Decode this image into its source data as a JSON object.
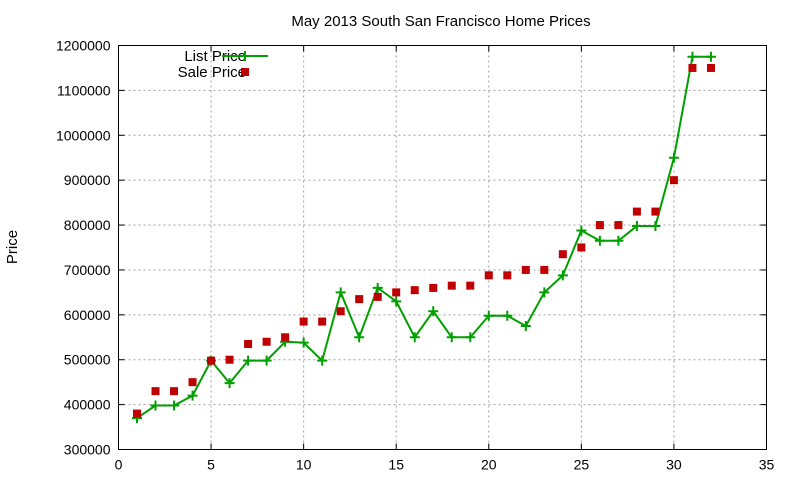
{
  "chart_data": {
    "type": "line",
    "title": "May 2013 South San Francisco Home Prices",
    "xlabel": "",
    "ylabel": "Price",
    "xlim": [
      0,
      35
    ],
    "ylim": [
      300000,
      1200000
    ],
    "xticks": [
      0,
      5,
      10,
      15,
      20,
      25,
      30,
      35
    ],
    "yticks": [
      300000,
      400000,
      500000,
      600000,
      700000,
      800000,
      900000,
      1000000,
      1100000,
      1200000
    ],
    "grid": true,
    "legend_position": "top-left",
    "x": [
      1,
      2,
      3,
      4,
      5,
      6,
      7,
      8,
      9,
      10,
      11,
      12,
      13,
      14,
      15,
      16,
      17,
      18,
      19,
      20,
      21,
      22,
      23,
      24,
      25,
      26,
      27,
      28,
      29,
      30,
      31,
      32
    ],
    "series": [
      {
        "name": "List Price",
        "style": "line-points",
        "marker": "plus",
        "color": "#00a000",
        "values": [
          370000,
          398000,
          398000,
          420000,
          498000,
          448000,
          498000,
          498000,
          540000,
          538000,
          498000,
          650000,
          550000,
          660000,
          630000,
          550000,
          608000,
          550000,
          550000,
          598000,
          598000,
          575000,
          650000,
          688000,
          788000,
          765000,
          765000,
          798000,
          798000,
          950000,
          1175000,
          1175000
        ]
      },
      {
        "name": "Sale Price",
        "style": "points",
        "marker": "square",
        "color": "#c00000",
        "values": [
          380000,
          430000,
          430000,
          450000,
          498000,
          500000,
          535000,
          540000,
          550000,
          585000,
          585000,
          608000,
          635000,
          640000,
          650000,
          655000,
          660000,
          665000,
          665000,
          688000,
          688000,
          700000,
          700000,
          735000,
          750000,
          800000,
          800000,
          830000,
          830000,
          900000,
          1150000,
          1150000
        ]
      }
    ]
  }
}
